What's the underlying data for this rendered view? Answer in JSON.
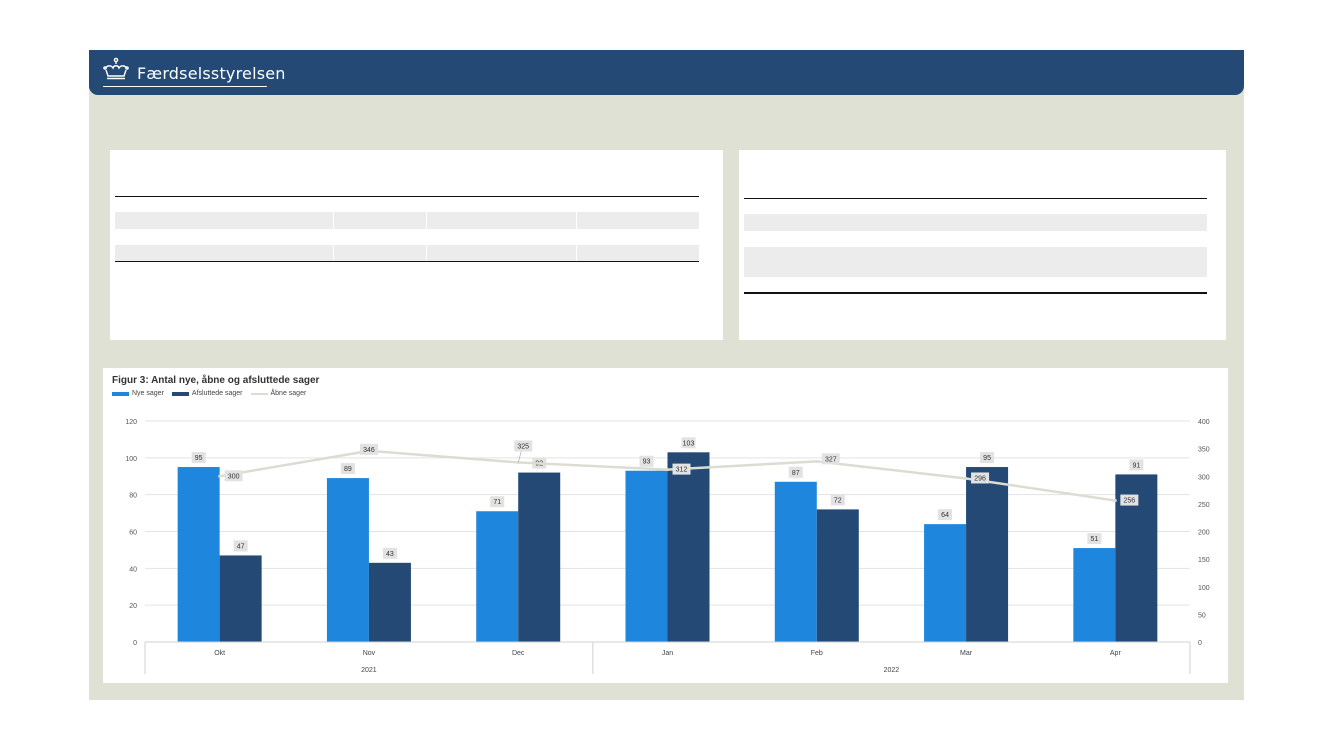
{
  "header": {
    "brand": "Færdselsstyrelsen",
    "icon": "crown-icon"
  },
  "colors": {
    "header": "#244975",
    "frame": "#dfe1d5",
    "nye": "#1f86de",
    "afsluttede": "#244975",
    "aabne": "#dcdcd2"
  },
  "chart_data": {
    "type": "bar",
    "title": "Figur 3: Antal nye, åbne og afsluttede sager",
    "categories": [
      "Okt",
      "Nov",
      "Dec",
      "Jan",
      "Feb",
      "Mar",
      "Apr"
    ],
    "groups": [
      {
        "label": "2021",
        "span": 3
      },
      {
        "label": "2022",
        "span": 4
      }
    ],
    "series": [
      {
        "name": "Nye sager",
        "kind": "bar",
        "axis": "left",
        "values": [
          95,
          89,
          71,
          93,
          87,
          64,
          51
        ]
      },
      {
        "name": "Afsluttede sager",
        "kind": "bar",
        "axis": "left",
        "values": [
          47,
          43,
          92,
          103,
          72,
          95,
          91
        ]
      },
      {
        "name": "Åbne sager",
        "kind": "line",
        "axis": "right",
        "values": [
          300,
          346,
          325,
          312,
          327,
          296,
          256
        ]
      }
    ],
    "ylim": [
      0,
      120
    ],
    "yticks": [
      "0",
      "20",
      "40",
      "60",
      "80",
      "100",
      "120"
    ],
    "y2lim": [
      0,
      400
    ],
    "y2ticks": [
      "0",
      "50",
      "100",
      "150",
      "200",
      "250",
      "300",
      "350",
      "400"
    ],
    "grid": true,
    "legend_position": "top-left"
  }
}
